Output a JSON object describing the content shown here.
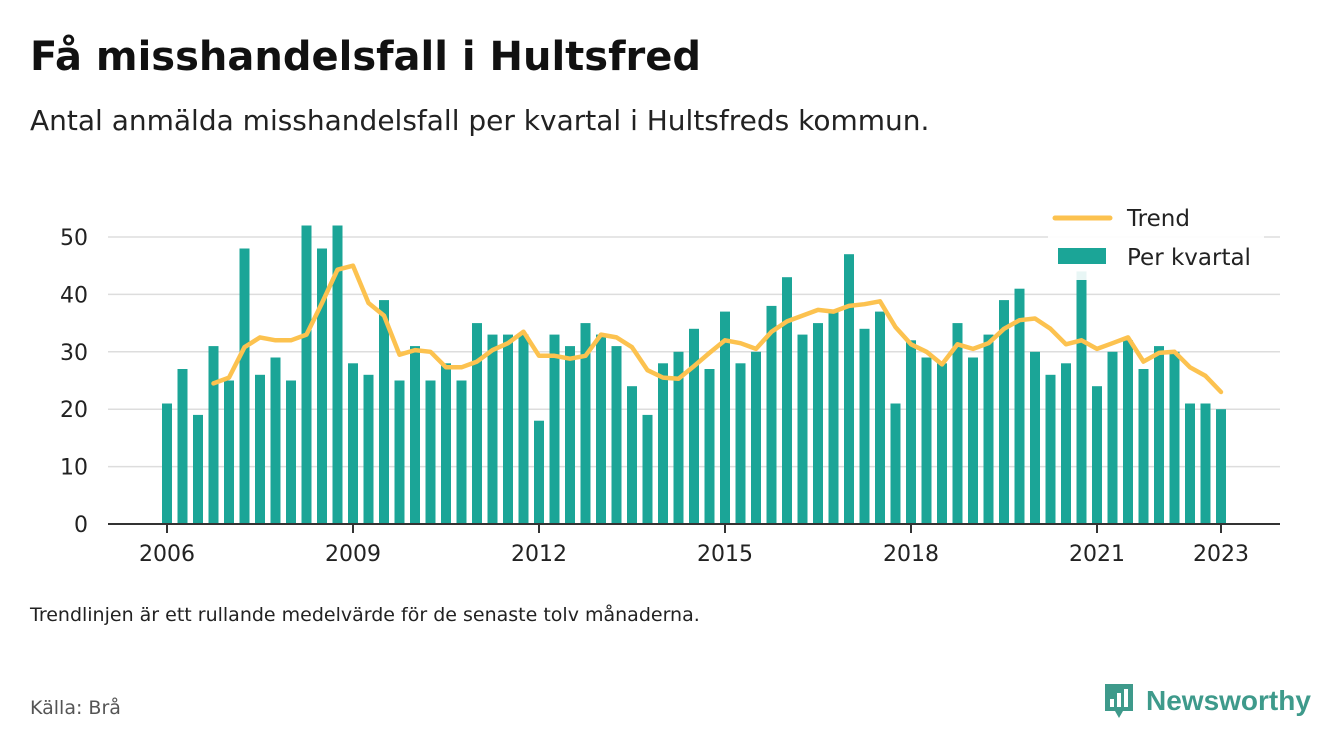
{
  "title": "Få misshandelsfall i Hultsfred",
  "subtitle": "Antal anmälda misshandelsfall per kvartal i Hultsfreds kommun.",
  "footnote": "Trendlinjen är ett rullande medelvärde för de senaste tolv månaderna.",
  "source": "Källa: Brå",
  "brand": {
    "name": "Newsworthy",
    "icon": "newsworthy-logo-icon"
  },
  "colors": {
    "bar": "#1ba597",
    "trend": "#fcc24f",
    "grid": "#dddddd",
    "axis": "#333333"
  },
  "chart_data": {
    "type": "bar",
    "title": "",
    "xlabel": "",
    "ylabel": "",
    "ylim": [
      0,
      55
    ],
    "yticks": [
      0,
      10,
      20,
      30,
      40,
      50
    ],
    "xticks": [
      "2006",
      "2009",
      "2012",
      "2015",
      "2018",
      "2021",
      "2023"
    ],
    "grid": true,
    "legend_position": "top-right",
    "categories": [
      "2006 Q1",
      "2006 Q2",
      "2006 Q3",
      "2006 Q4",
      "2007 Q1",
      "2007 Q2",
      "2007 Q3",
      "2007 Q4",
      "2008 Q1",
      "2008 Q2",
      "2008 Q3",
      "2008 Q4",
      "2009 Q1",
      "2009 Q2",
      "2009 Q3",
      "2009 Q4",
      "2010 Q1",
      "2010 Q2",
      "2010 Q3",
      "2010 Q4",
      "2011 Q1",
      "2011 Q2",
      "2011 Q3",
      "2011 Q4",
      "2012 Q1",
      "2012 Q2",
      "2012 Q3",
      "2012 Q4",
      "2013 Q1",
      "2013 Q2",
      "2013 Q3",
      "2013 Q4",
      "2014 Q1",
      "2014 Q2",
      "2014 Q3",
      "2014 Q4",
      "2015 Q1",
      "2015 Q2",
      "2015 Q3",
      "2015 Q4",
      "2016 Q1",
      "2016 Q2",
      "2016 Q3",
      "2016 Q4",
      "2017 Q1",
      "2017 Q2",
      "2017 Q3",
      "2017 Q4",
      "2018 Q1",
      "2018 Q2",
      "2018 Q3",
      "2018 Q4",
      "2019 Q1",
      "2019 Q2",
      "2019 Q3",
      "2019 Q4",
      "2020 Q1",
      "2020 Q2",
      "2020 Q3",
      "2020 Q4",
      "2021 Q1",
      "2021 Q2",
      "2021 Q3",
      "2021 Q4",
      "2022 Q1",
      "2022 Q2",
      "2022 Q3",
      "2022 Q4",
      "2023 Q1"
    ],
    "series": [
      {
        "name": "Per kvartal",
        "type": "bar",
        "values": [
          21,
          27,
          19,
          31,
          25,
          48,
          26,
          29,
          25,
          52,
          48,
          52,
          28,
          26,
          39,
          25,
          31,
          25,
          28,
          25,
          35,
          33,
          33,
          33,
          18,
          33,
          31,
          35,
          33,
          31,
          24,
          19,
          28,
          30,
          34,
          27,
          37,
          28,
          30,
          38,
          43,
          33,
          35,
          37,
          47,
          34,
          37,
          21,
          32,
          29,
          28,
          35,
          29,
          33,
          39,
          41,
          30,
          26,
          28,
          44,
          24,
          30,
          32,
          27,
          31,
          30,
          21,
          21,
          20
        ]
      },
      {
        "name": "Trend",
        "type": "line",
        "values": [
          null,
          null,
          null,
          24.5,
          25.5,
          30.8,
          32.5,
          32.0,
          32.0,
          33.0,
          38.5,
          44.3,
          45.0,
          38.5,
          36.3,
          29.5,
          30.3,
          30.0,
          27.3,
          27.3,
          28.3,
          30.3,
          31.5,
          33.5,
          29.3,
          29.3,
          28.8,
          29.3,
          33.0,
          32.5,
          30.8,
          26.8,
          25.5,
          25.3,
          27.5,
          29.8,
          32.0,
          31.5,
          30.5,
          33.5,
          35.3,
          36.3,
          37.3,
          37.0,
          38.0,
          38.3,
          38.8,
          34.3,
          31.3,
          30.0,
          27.8,
          31.3,
          30.5,
          31.5,
          34.0,
          35.5,
          35.8,
          34.0,
          31.3,
          32.0,
          30.5,
          31.5,
          32.5,
          28.3,
          29.8,
          30.0,
          27.3,
          25.8,
          23.0
        ]
      }
    ]
  }
}
